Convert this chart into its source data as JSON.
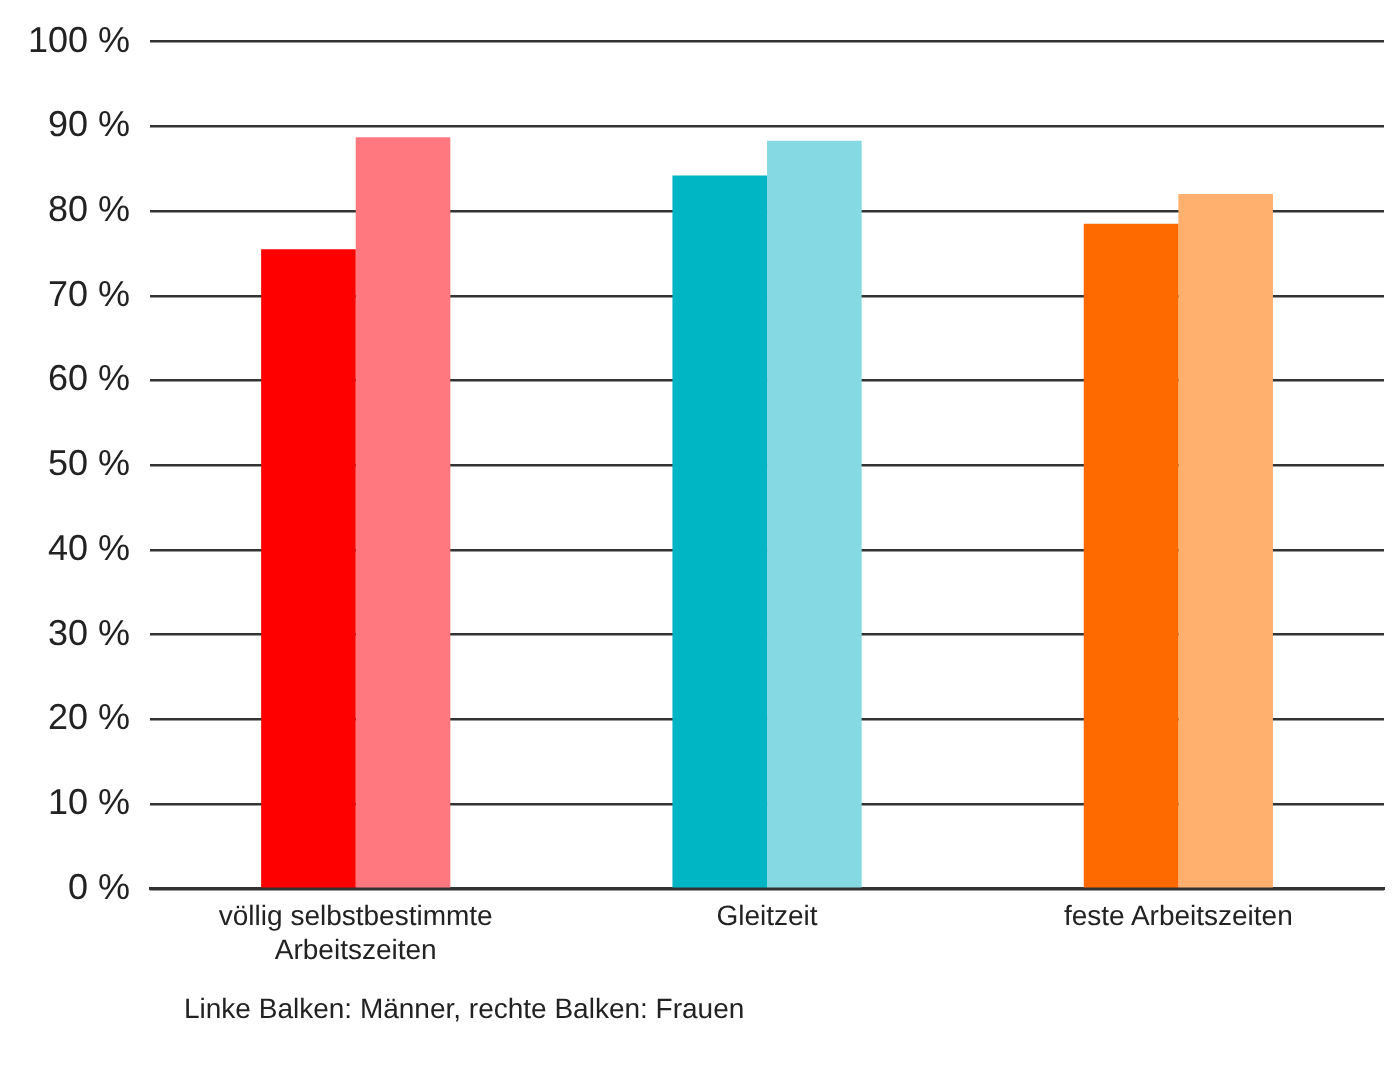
{
  "chart_data": {
    "type": "bar",
    "categories": [
      "völlig selbstbestimmte Arbeitszeiten",
      "Gleitzeit",
      "feste Arbeitszeiten"
    ],
    "series": [
      {
        "colors": [
          "#ff0000",
          "#00b5c4",
          "#ff6a00"
        ],
        "values": [
          75.5,
          84.2,
          78.5
        ]
      },
      {
        "colors": [
          "#ff7880",
          "#85d9e2",
          "#ffb06f"
        ],
        "values": [
          88.7,
          88.3,
          82.0
        ]
      }
    ],
    "ylim": [
      0,
      100
    ],
    "yticks": [
      {
        "value": 0,
        "label": "0 %"
      },
      {
        "value": 10,
        "label": "10 %"
      },
      {
        "value": 20,
        "label": "20 %"
      },
      {
        "value": 30,
        "label": "30 %"
      },
      {
        "value": 40,
        "label": "40 %"
      },
      {
        "value": 50,
        "label": "50 %"
      },
      {
        "value": 60,
        "label": "60 %"
      },
      {
        "value": 70,
        "label": "70 %"
      },
      {
        "value": 80,
        "label": "80 %"
      },
      {
        "value": 90,
        "label": "90 %"
      },
      {
        "value": 100,
        "label": "100 %"
      }
    ],
    "grid": "y",
    "legend": false,
    "annotations": [
      "Linke Balken: Männer, rechte Balken: Frauen"
    ]
  }
}
